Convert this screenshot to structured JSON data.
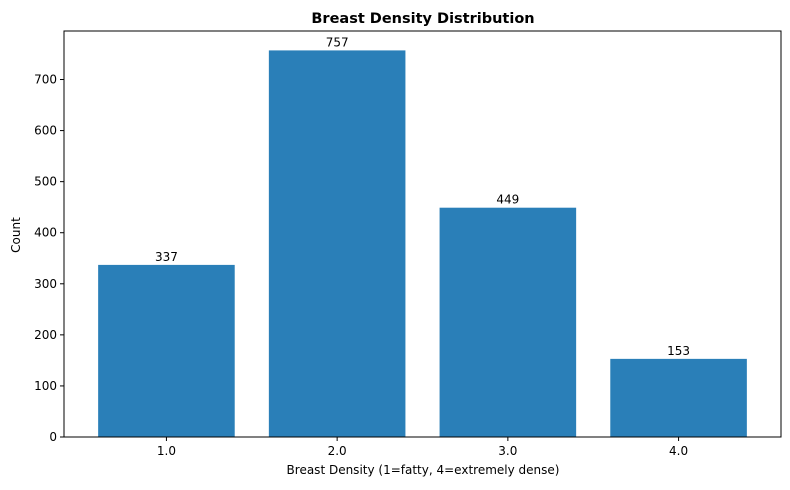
{
  "chart_data": {
    "type": "bar",
    "title": "Breast Density Distribution",
    "xlabel": "Breast Density (1=fatty, 4=extremely dense)",
    "ylabel": "Count",
    "categories": [
      "1.0",
      "2.0",
      "3.0",
      "4.0"
    ],
    "values": [
      337,
      757,
      449,
      153
    ],
    "data_labels": [
      "337",
      "757",
      "449",
      "153"
    ],
    "ylim": [
      0,
      795
    ],
    "yticks": [
      0,
      100,
      200,
      300,
      400,
      500,
      600,
      700
    ],
    "ytick_labels": [
      "0",
      "100",
      "200",
      "300",
      "400",
      "500",
      "600",
      "700"
    ],
    "bar_color": "#2a7fb8",
    "grid": false,
    "legend": "none"
  }
}
